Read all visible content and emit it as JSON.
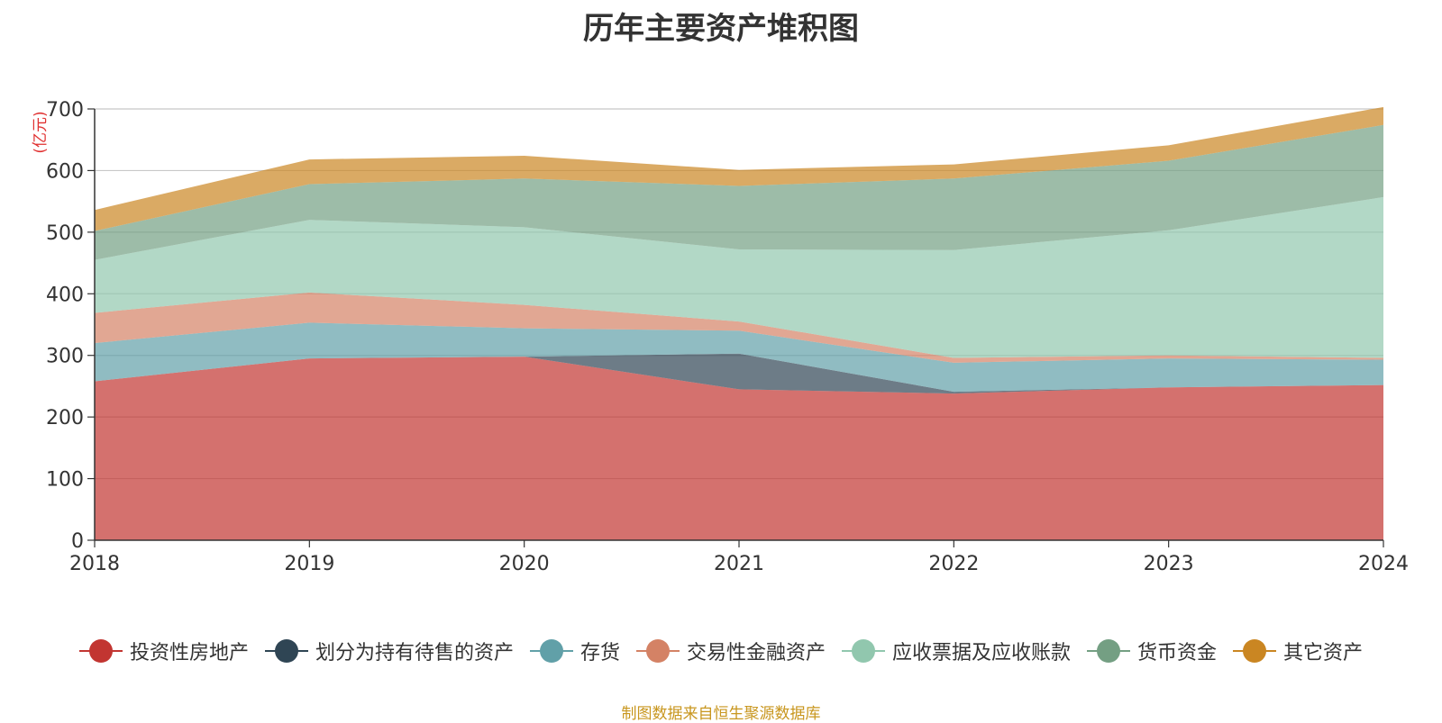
{
  "chart_data": {
    "type": "area",
    "title": "历年主要资产堆积图",
    "unit_label": "(亿元)",
    "categories": [
      "2018",
      "2019",
      "2020",
      "2021",
      "2022",
      "2023",
      "2024"
    ],
    "ylim": [
      0,
      700
    ],
    "yticks": [
      0,
      100,
      200,
      300,
      400,
      500,
      600,
      700
    ],
    "stacked": true,
    "grid": true,
    "legend_position": "bottom",
    "series": [
      {
        "name": "投资性房地产",
        "color": "#c23531",
        "values": [
          258,
          295,
          298,
          245,
          238,
          248,
          252
        ]
      },
      {
        "name": "划分为持有待售的资产",
        "color": "#2f4554",
        "values": [
          0,
          0,
          0,
          58,
          3,
          0,
          0
        ]
      },
      {
        "name": "存货",
        "color": "#61a0a8",
        "values": [
          62,
          58,
          46,
          37,
          47,
          47,
          41
        ]
      },
      {
        "name": "交易性金融资产",
        "color": "#d48265",
        "values": [
          49,
          49,
          38,
          15,
          8,
          5,
          3
        ]
      },
      {
        "name": "应收票据及应收账款",
        "color": "#91c7ae",
        "values": [
          86,
          118,
          126,
          117,
          175,
          203,
          261
        ]
      },
      {
        "name": "货币资金",
        "color": "#749f83",
        "values": [
          47,
          58,
          79,
          103,
          116,
          113,
          117
        ]
      },
      {
        "name": "其它资产",
        "color": "#ca8622",
        "values": [
          34,
          40,
          37,
          26,
          23,
          25,
          29
        ]
      }
    ]
  },
  "footer": {
    "source": "制图数据来自恒生聚源数据库"
  }
}
